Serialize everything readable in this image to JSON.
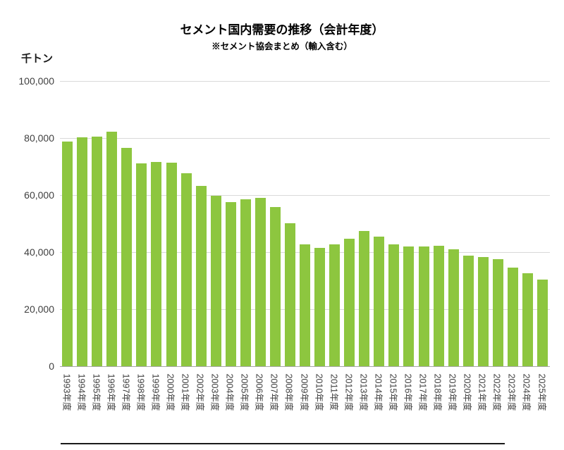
{
  "header": {
    "title": "セメント国内需要の推移（会計年度）",
    "subtitle": "※セメント協会まとめ（輸入含む）"
  },
  "y_axis": {
    "unit_label": "千トン"
  },
  "chart_data": {
    "type": "bar",
    "title": "セメント国内需要の推移（会計年度）",
    "subtitle": "※セメント協会まとめ（輸入含む）",
    "xlabel": "",
    "ylabel": "千トン",
    "ylim": [
      0,
      100000
    ],
    "grid": true,
    "legend": "none",
    "bar_color": "#8dc63f",
    "gridline_color": "#d9d9d9",
    "yticks": [
      {
        "value": 0,
        "label": "0"
      },
      {
        "value": 20000,
        "label": "20,000"
      },
      {
        "value": 40000,
        "label": "40,000"
      },
      {
        "value": 60000,
        "label": "60,000"
      },
      {
        "value": 80000,
        "label": "80,000"
      },
      {
        "value": 100000,
        "label": "100,000"
      }
    ],
    "categories": [
      "1993年度",
      "1994年度",
      "1995年度",
      "1996年度",
      "1997年度",
      "1998年度",
      "1999年度",
      "2000年度",
      "2001年度",
      "2002年度",
      "2003年度",
      "2004年度",
      "2005年度",
      "2006年度",
      "2007年度",
      "2008年度",
      "2009年度",
      "2010年度",
      "2011年度",
      "2012年度",
      "2013年度",
      "2014年度",
      "2015年度",
      "2016年度",
      "2017年度",
      "2018年度",
      "2019年度",
      "2020年度",
      "2021年度",
      "2022年度",
      "2023年度",
      "2024年度",
      "2025年度"
    ],
    "values": [
      78800,
      80300,
      80600,
      82300,
      76500,
      71100,
      71500,
      71400,
      67600,
      63300,
      59800,
      57500,
      58600,
      59000,
      55700,
      50100,
      42700,
      41600,
      42700,
      44700,
      47500,
      45500,
      42700,
      41900,
      42000,
      42300,
      40900,
      38700,
      38200,
      37500,
      34500,
      32500,
      30500
    ]
  }
}
